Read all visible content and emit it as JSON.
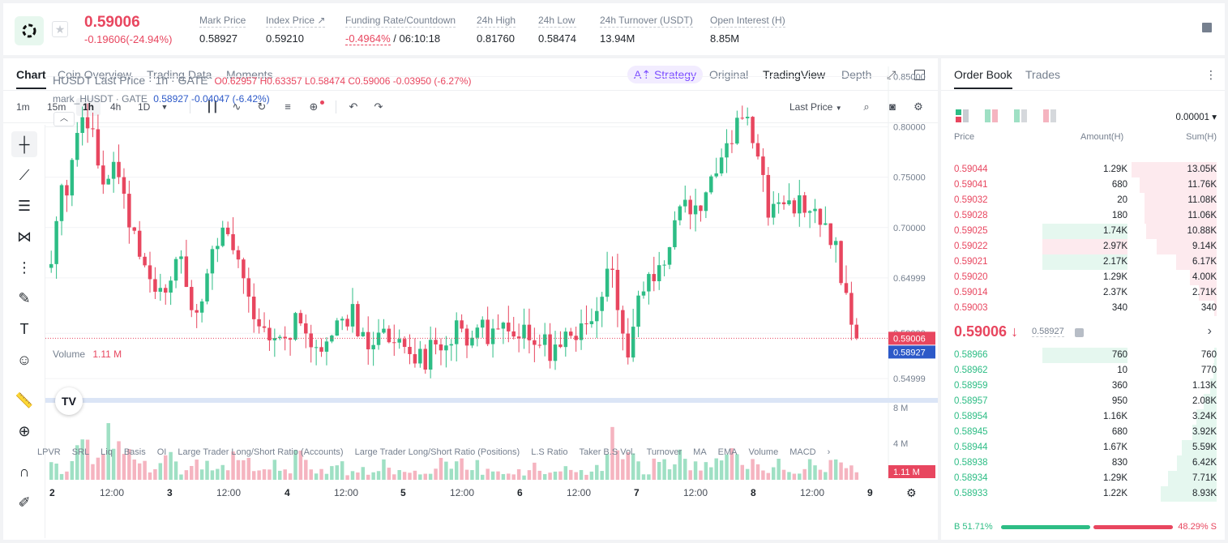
{
  "header": {
    "price": "0.59006",
    "change": "-0.19606(-24.94%)",
    "stats": [
      {
        "label": "Mark Price",
        "value": "0.58927"
      },
      {
        "label": "Index Price ↗",
        "value": "0.59210"
      },
      {
        "label": "Funding Rate/Countdown",
        "value_neg": "-0.4964%",
        "value": " / 06:10:18"
      },
      {
        "label": "24h High",
        "value": "0.81760"
      },
      {
        "label": "24h Low",
        "value": "0.58474"
      },
      {
        "label": "24h Turnover (USDT)",
        "value": "13.94M"
      },
      {
        "label": "Open Interest (H)",
        "value": "8.85M"
      }
    ]
  },
  "chart_tabs": [
    "Chart",
    "Coin Overview",
    "Trading Data",
    "Moments"
  ],
  "view_tabs": {
    "strategy": "A⇡ Strategy",
    "original": "Original",
    "tradingview": "TradingView",
    "depth": "Depth"
  },
  "timeframes": [
    "1m",
    "15m",
    "1h",
    "4h",
    "1D"
  ],
  "selected_timeframe": "1h",
  "last_price_selector": "Last Price",
  "legend": {
    "main_name": "HUSDT Last Price · 1h · GATE",
    "ohlc": "O0.62957  H0.63357  L0.58474  C0.59006  -0.03950 (-6.27%)",
    "mark_name": "mark_HUSDT · GATE",
    "mark_vals": "0.58927  -0.04047 (-6.42%)"
  },
  "volume_label": "Volume",
  "volume_value": "1.11 M",
  "bottom_indicators": [
    "LPVR",
    "SRL",
    "Liq",
    "Basis",
    "OI",
    "Large Trader Long/Short Ratio (Accounts)",
    "Large Trader Long/Short Ratio (Positions)",
    "L.S Ratio",
    "Taker B.S Vol.",
    "Turnover",
    "MA",
    "EMA",
    "Volume",
    "MACD"
  ],
  "chart_data": {
    "type": "candlestick",
    "y_ticks": [
      "0.85000",
      "0.80000",
      "0.75000",
      "0.70000",
      "0.64999",
      "0.59000",
      "0.54999"
    ],
    "ylim": [
      0.53,
      0.86
    ],
    "volume_ticks": [
      "8 M",
      "4 M"
    ],
    "volume_ylim": [
      0,
      9
    ],
    "x_ticks": [
      "2",
      "12:00",
      "3",
      "12:00",
      "4",
      "12:00",
      "5",
      "12:00",
      "6",
      "12:00",
      "7",
      "12:00",
      "8",
      "12:00",
      "9"
    ],
    "last_price": 0.59006,
    "last_price_label": "0.59006",
    "mark_price": 0.58927,
    "mark_price_label": "0.58927",
    "volume_last_label": "1.11 M",
    "close_path": [
      0.66,
      0.73,
      0.74,
      0.78,
      0.81,
      0.79,
      0.76,
      0.74,
      0.77,
      0.72,
      0.7,
      0.66,
      0.65,
      0.63,
      0.64,
      0.66,
      0.67,
      0.63,
      0.62,
      0.64,
      0.68,
      0.69,
      0.68,
      0.67,
      0.63,
      0.62,
      0.6,
      0.58,
      0.6,
      0.59,
      0.61,
      0.6,
      0.59,
      0.57,
      0.58,
      0.61,
      0.6,
      0.62,
      0.59,
      0.58,
      0.6,
      0.59,
      0.59,
      0.6,
      0.58,
      0.57,
      0.57,
      0.58,
      0.57,
      0.58,
      0.6,
      0.58,
      0.61,
      0.6,
      0.59,
      0.6,
      0.59,
      0.58,
      0.59,
      0.6,
      0.59,
      0.58,
      0.58,
      0.6,
      0.59,
      0.6,
      0.6,
      0.61,
      0.64,
      0.66,
      0.6,
      0.58,
      0.62,
      0.63,
      0.66,
      0.65,
      0.69,
      0.71,
      0.72,
      0.71,
      0.73,
      0.74,
      0.76,
      0.78,
      0.8,
      0.81,
      0.79,
      0.76,
      0.72,
      0.73,
      0.72,
      0.72,
      0.73,
      0.72,
      0.71,
      0.7,
      0.69,
      0.66,
      0.62,
      0.59
    ],
    "volume_path": [
      2,
      1,
      3,
      6,
      5,
      3,
      5,
      6,
      4,
      3,
      2,
      2,
      1,
      2,
      3,
      2,
      1,
      2,
      1,
      2,
      1,
      2,
      3,
      2,
      2,
      1,
      1,
      2,
      1,
      1,
      3,
      2,
      1,
      1,
      2,
      2,
      1,
      1,
      2,
      1,
      1,
      2,
      1,
      1,
      1,
      1,
      1,
      1,
      2,
      1,
      3,
      1,
      2,
      1,
      1,
      1,
      1,
      1,
      1,
      2,
      1,
      1,
      1,
      2,
      1,
      1,
      1,
      2,
      4,
      5,
      2,
      3,
      2,
      1,
      2,
      2,
      2,
      3,
      2,
      2,
      2,
      2,
      2,
      3,
      3,
      2,
      2,
      2,
      1,
      2,
      1,
      1,
      1,
      2,
      2,
      1,
      2,
      2,
      2,
      1
    ]
  },
  "orderbook": {
    "tabs": [
      "Order Book",
      "Trades"
    ],
    "precision": "0.00001 ▾",
    "headers": {
      "price": "Price",
      "amount": "Amount(H)",
      "sum": "Sum(H)"
    },
    "asks": [
      {
        "price": "0.59044",
        "amount": "1.29K",
        "sum": "13.05K",
        "sum_frac": 1.0,
        "amt_frac": 0
      },
      {
        "price": "0.59041",
        "amount": "680",
        "sum": "11.76K",
        "sum_frac": 0.9,
        "amt_frac": 0
      },
      {
        "price": "0.59032",
        "amount": "20",
        "sum": "11.08K",
        "sum_frac": 0.85,
        "amt_frac": 0
      },
      {
        "price": "0.59028",
        "amount": "180",
        "sum": "11.06K",
        "sum_frac": 0.85,
        "amt_frac": 0
      },
      {
        "price": "0.59025",
        "amount": "1.74K",
        "sum": "10.88K",
        "sum_frac": 0.83,
        "amt_frac": 0.35,
        "amt_green": true
      },
      {
        "price": "0.59022",
        "amount": "2.97K",
        "sum": "9.14K",
        "sum_frac": 0.7,
        "amt_frac": 0.35
      },
      {
        "price": "0.59021",
        "amount": "2.17K",
        "sum": "6.17K",
        "sum_frac": 0.48,
        "amt_frac": 0.35,
        "amt_green": true
      },
      {
        "price": "0.59020",
        "amount": "1.29K",
        "sum": "4.00K",
        "sum_frac": 0.31,
        "amt_frac": 0
      },
      {
        "price": "0.59014",
        "amount": "2.37K",
        "sum": "2.71K",
        "sum_frac": 0.21,
        "amt_frac": 0
      },
      {
        "price": "0.59003",
        "amount": "340",
        "sum": "340",
        "sum_frac": 0.03,
        "amt_frac": 0
      }
    ],
    "mid_price": "0.59006 ↓",
    "mid_mark": "0.58927",
    "bids": [
      {
        "price": "0.58966",
        "amount": "760",
        "sum": "760",
        "sum_frac": 0.03,
        "amt_frac": 0.35
      },
      {
        "price": "0.58962",
        "amount": "10",
        "sum": "770",
        "sum_frac": 0.04,
        "amt_frac": 0
      },
      {
        "price": "0.58959",
        "amount": "360",
        "sum": "1.13K",
        "sum_frac": 0.08,
        "amt_frac": 0
      },
      {
        "price": "0.58957",
        "amount": "950",
        "sum": "2.08K",
        "sum_frac": 0.15,
        "amt_frac": 0
      },
      {
        "price": "0.58954",
        "amount": "1.16K",
        "sum": "3.24K",
        "sum_frac": 0.24,
        "amt_frac": 0
      },
      {
        "price": "0.58945",
        "amount": "680",
        "sum": "3.92K",
        "sum_frac": 0.29,
        "amt_frac": 0
      },
      {
        "price": "0.58944",
        "amount": "1.67K",
        "sum": "5.59K",
        "sum_frac": 0.41,
        "amt_frac": 0
      },
      {
        "price": "0.58938",
        "amount": "830",
        "sum": "6.42K",
        "sum_frac": 0.47,
        "amt_frac": 0
      },
      {
        "price": "0.58934",
        "amount": "1.29K",
        "sum": "7.71K",
        "sum_frac": 0.57,
        "amt_frac": 0
      },
      {
        "price": "0.58933",
        "amount": "1.22K",
        "sum": "8.93K",
        "sum_frac": 0.66,
        "amt_frac": 0
      }
    ],
    "buy_ratio": "B 51.71%",
    "sell_ratio": "48.29% S",
    "buy_frac": 0.5171
  },
  "colors": {
    "up": "#2dbd85",
    "down": "#e8465f",
    "mark": "#2c59c8"
  }
}
